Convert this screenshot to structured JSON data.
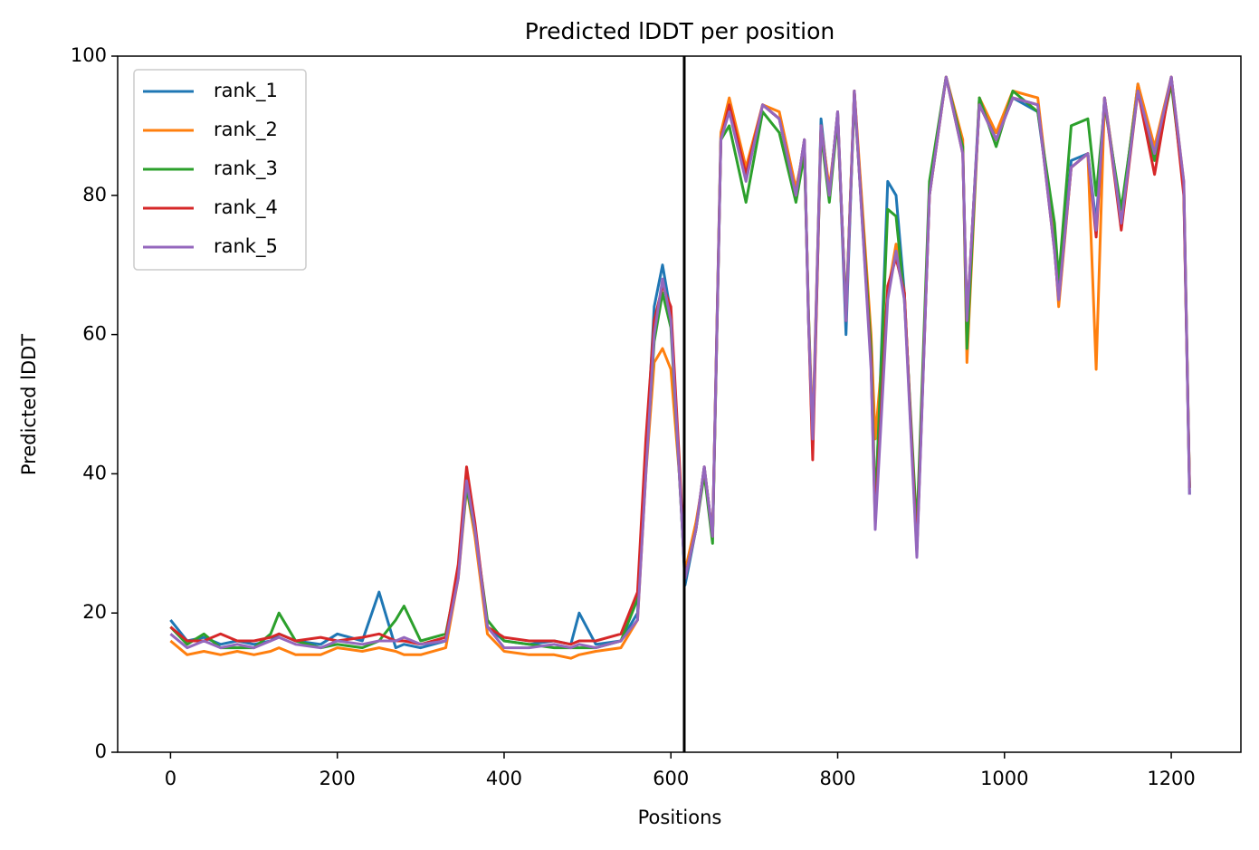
{
  "chart_data": {
    "type": "line",
    "title": "Predicted lDDT per position",
    "xlabel": "Positions",
    "ylabel": "Predicted lDDT",
    "xlim": [
      -63.4,
      1283.5
    ],
    "xticks": [
      0,
      200,
      400,
      600,
      800,
      1000,
      1200
    ],
    "ylim": [
      0,
      100
    ],
    "yticks": [
      0,
      20,
      40,
      60,
      80,
      100
    ],
    "grid": false,
    "legend": "upper left",
    "vline": 616,
    "x": [
      0,
      20,
      40,
      60,
      80,
      100,
      120,
      130,
      150,
      180,
      200,
      230,
      250,
      270,
      280,
      300,
      330,
      345,
      355,
      365,
      380,
      400,
      430,
      460,
      480,
      490,
      510,
      540,
      560,
      570,
      580,
      590,
      600,
      610,
      617,
      630,
      640,
      650,
      660,
      670,
      690,
      710,
      730,
      750,
      760,
      765,
      770,
      780,
      790,
      800,
      810,
      820,
      840,
      845,
      860,
      870,
      880,
      895,
      910,
      930,
      950,
      955,
      970,
      990,
      1010,
      1040,
      1060,
      1065,
      1080,
      1100,
      1110,
      1120,
      1140,
      1160,
      1180,
      1200,
      1215,
      1222
    ],
    "series": [
      {
        "name": "rank_1",
        "color": "#1f77b4",
        "values": [
          19,
          16,
          16.5,
          15.5,
          16,
          15.5,
          16,
          17,
          16,
          15.5,
          17,
          16,
          23,
          15,
          15.5,
          15,
          16,
          26,
          40,
          32,
          18,
          16,
          15.5,
          16,
          15.5,
          20,
          15.5,
          16,
          20,
          42,
          64,
          70,
          63,
          41,
          24,
          32,
          41,
          31,
          89,
          93,
          83,
          93,
          91,
          80,
          88,
          62,
          44,
          91,
          80,
          92,
          60,
          95,
          56,
          34,
          82,
          80,
          66,
          29,
          81,
          97,
          87,
          61,
          94,
          88,
          94,
          92,
          74,
          66,
          85,
          86,
          76,
          94,
          77,
          96,
          86,
          97,
          81,
          37
        ]
      },
      {
        "name": "rank_2",
        "color": "#ff7f0e",
        "values": [
          16,
          14,
          14.5,
          14,
          14.5,
          14,
          14.5,
          15,
          14,
          14,
          15,
          14.5,
          15,
          14.5,
          14,
          14,
          15,
          25,
          38,
          31,
          17,
          14.5,
          14,
          14,
          13.5,
          14,
          14.5,
          15,
          19,
          40,
          56,
          58,
          55,
          40,
          26,
          33,
          40,
          31,
          89,
          94,
          84,
          93,
          92,
          81,
          87,
          63,
          46,
          90,
          81,
          91,
          63,
          95,
          60,
          45,
          66,
          73,
          66,
          29,
          80,
          97,
          88,
          56,
          94,
          89,
          95,
          94,
          73,
          64,
          84,
          86,
          55,
          94,
          77,
          96,
          87,
          97,
          82,
          38
        ]
      },
      {
        "name": "rank_3",
        "color": "#2ca02c",
        "values": [
          18,
          15.5,
          17,
          15,
          15,
          15,
          17,
          20,
          16,
          15,
          15.5,
          15,
          16,
          19,
          21,
          16,
          17,
          26,
          38,
          32,
          19,
          16,
          15.5,
          15,
          15,
          15,
          15,
          16,
          22,
          41,
          59,
          66,
          61,
          40,
          25,
          32,
          40,
          30,
          88,
          90,
          79,
          92,
          89,
          79,
          86,
          63,
          44,
          89,
          79,
          91,
          63,
          94,
          58,
          35,
          78,
          77,
          65,
          32,
          82,
          97,
          87,
          58,
          94,
          87,
          95,
          92,
          76,
          68,
          90,
          91,
          80,
          93,
          78,
          95,
          85,
          96,
          81,
          38
        ]
      },
      {
        "name": "rank_4",
        "color": "#d62728",
        "values": [
          18,
          16,
          16,
          17,
          16,
          16,
          16.5,
          17,
          16,
          16.5,
          16,
          16.5,
          17,
          16,
          16,
          15.5,
          16.5,
          27,
          41,
          33,
          18,
          16.5,
          16,
          16,
          15.5,
          16,
          16,
          17,
          23,
          45,
          62,
          67,
          64,
          42,
          25,
          32,
          41,
          31,
          88,
          93,
          83,
          93,
          91,
          80,
          88,
          62,
          42,
          90,
          80,
          92,
          62,
          95,
          56,
          33,
          67,
          71,
          66,
          29,
          80,
          97,
          86,
          62,
          93,
          88,
          94,
          93,
          72,
          65,
          84,
          86,
          74,
          94,
          75,
          95,
          83,
          97,
          80,
          38
        ]
      },
      {
        "name": "rank_5",
        "color": "#9467bd",
        "values": [
          17,
          15,
          16,
          15,
          15.5,
          15,
          16,
          16.5,
          15.5,
          15,
          16,
          15.5,
          16,
          16,
          16.5,
          15.5,
          16,
          25,
          39,
          32,
          18,
          15,
          15,
          15.5,
          15,
          15.5,
          15,
          16,
          19,
          40,
          60,
          68,
          62,
          40,
          25,
          32,
          41,
          31,
          88,
          92,
          82,
          93,
          91,
          80,
          88,
          62,
          45,
          90,
          80,
          92,
          62,
          95,
          55,
          32,
          65,
          72,
          65,
          28,
          80,
          97,
          86,
          62,
          93,
          88,
          94,
          93,
          72,
          65,
          84,
          86,
          75,
          94,
          76,
          95,
          86,
          97,
          82,
          37
        ]
      }
    ]
  }
}
